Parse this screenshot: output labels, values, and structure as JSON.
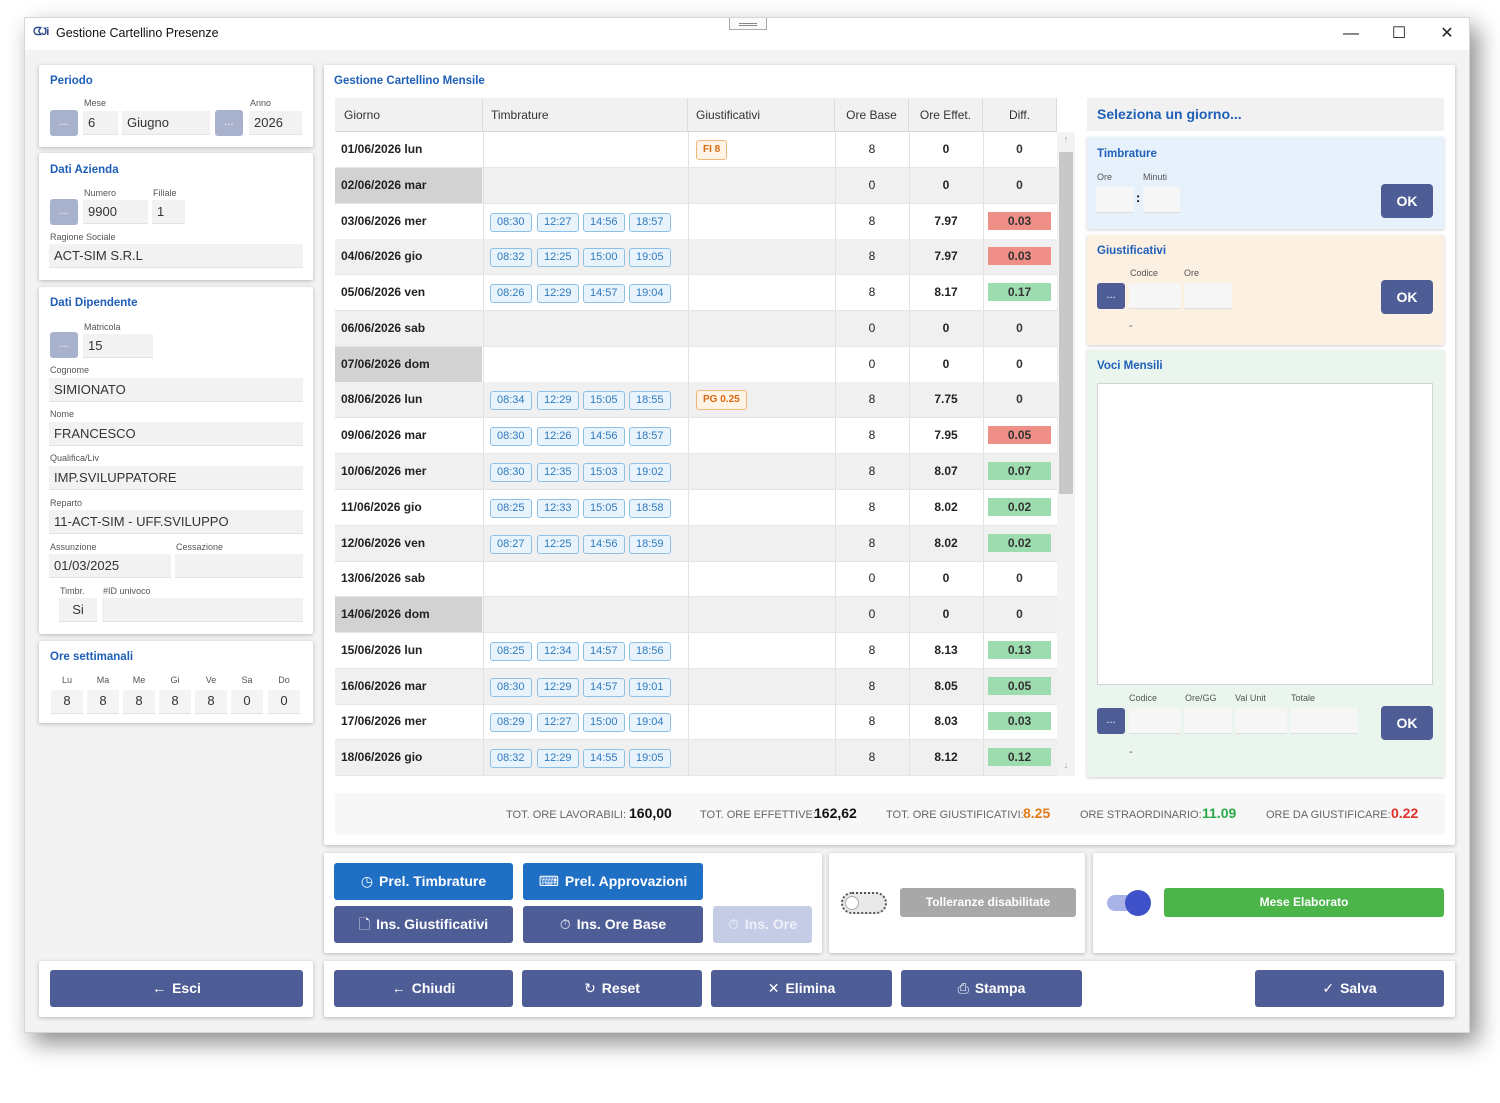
{
  "window": {
    "title": "Gestione Cartellino Presenze",
    "minimize": "—",
    "maximize": "☐",
    "close": "✕"
  },
  "periodo": {
    "title": "Periodo",
    "mese_label": "Mese",
    "mese_num": "6",
    "mese_nome": "Giugno",
    "anno_label": "Anno",
    "anno": "2026",
    "dots": "..."
  },
  "azienda": {
    "title": "Dati Azienda",
    "numero_label": "Numero",
    "numero": "9900",
    "filiale_label": "Filiale",
    "filiale": "1",
    "ragione_label": "Ragione Sociale",
    "ragione": "ACT-SIM S.R.L"
  },
  "dipendente": {
    "title": "Dati Dipendente",
    "matricola_label": "Matricola",
    "matricola": "15",
    "cognome_label": "Cognome",
    "cognome": "SIMIONATO",
    "nome_label": "Nome",
    "nome": "FRANCESCO",
    "qualifica_label": "Qualifica/Liv",
    "qualifica": "IMP.SVILUPPATORE",
    "reparto_label": "Reparto",
    "reparto": "11-ACT-SIM - UFF.SVILUPPO",
    "assunzione_label": "Assunzione",
    "assunzione": "01/03/2025",
    "cessazione_label": "Cessazione",
    "cessazione": "",
    "timbr_label": "Timbr.",
    "timbr": "Si",
    "id_label": "#ID univoco",
    "id": ""
  },
  "ore_settimanali": {
    "title": "Ore settimanali",
    "days": [
      {
        "label": "Lu",
        "value": "8"
      },
      {
        "label": "Ma",
        "value": "8"
      },
      {
        "label": "Me",
        "value": "8"
      },
      {
        "label": "Gi",
        "value": "8"
      },
      {
        "label": "Ve",
        "value": "8"
      },
      {
        "label": "Sa",
        "value": "0"
      },
      {
        "label": "Do",
        "value": "0"
      }
    ]
  },
  "grid": {
    "title": "Gestione Cartellino Mensile",
    "columns": [
      "Giorno",
      "Timbrature",
      "Giustificativi",
      "Ore Base",
      "Ore Effet.",
      "Diff."
    ],
    "rows": [
      {
        "day": "01/06/2026 lun",
        "punches": [],
        "just": "FI 8",
        "base": "8",
        "eff": "0",
        "diff": "0",
        "diff_status": "none",
        "weekend": false
      },
      {
        "day": "02/06/2026 mar",
        "punches": [],
        "just": "",
        "base": "0",
        "eff": "0",
        "diff": "0",
        "diff_status": "none",
        "weekend": true
      },
      {
        "day": "03/06/2026 mer",
        "punches": [
          "08:30",
          "12:27",
          "14:56",
          "18:57"
        ],
        "just": "",
        "base": "8",
        "eff": "7.97",
        "diff": "0.03",
        "diff_status": "red",
        "weekend": false
      },
      {
        "day": "04/06/2026 gio",
        "punches": [
          "08:32",
          "12:25",
          "15:00",
          "19:05"
        ],
        "just": "",
        "base": "8",
        "eff": "7.97",
        "diff": "0.03",
        "diff_status": "red",
        "weekend": false
      },
      {
        "day": "05/06/2026 ven",
        "punches": [
          "08:26",
          "12:29",
          "14:57",
          "19:04"
        ],
        "just": "",
        "base": "8",
        "eff": "8.17",
        "diff": "0.17",
        "diff_status": "green",
        "weekend": false
      },
      {
        "day": "06/06/2026 sab",
        "punches": [],
        "just": "",
        "base": "0",
        "eff": "0",
        "diff": "0",
        "diff_status": "none",
        "weekend": false
      },
      {
        "day": "07/06/2026 dom",
        "punches": [],
        "just": "",
        "base": "0",
        "eff": "0",
        "diff": "0",
        "diff_status": "none",
        "weekend": true
      },
      {
        "day": "08/06/2026 lun",
        "punches": [
          "08:34",
          "12:29",
          "15:05",
          "18:55"
        ],
        "just": "PG 0.25",
        "base": "8",
        "eff": "7.75",
        "diff": "0",
        "diff_status": "none",
        "weekend": false
      },
      {
        "day": "09/06/2026 mar",
        "punches": [
          "08:30",
          "12:26",
          "14:56",
          "18:57"
        ],
        "just": "",
        "base": "8",
        "eff": "7.95",
        "diff": "0.05",
        "diff_status": "red",
        "weekend": false
      },
      {
        "day": "10/06/2026 mer",
        "punches": [
          "08:30",
          "12:35",
          "15:03",
          "19:02"
        ],
        "just": "",
        "base": "8",
        "eff": "8.07",
        "diff": "0.07",
        "diff_status": "green",
        "weekend": false
      },
      {
        "day": "11/06/2026 gio",
        "punches": [
          "08:25",
          "12:33",
          "15:05",
          "18:58"
        ],
        "just": "",
        "base": "8",
        "eff": "8.02",
        "diff": "0.02",
        "diff_status": "green",
        "weekend": false
      },
      {
        "day": "12/06/2026 ven",
        "punches": [
          "08:27",
          "12:25",
          "14:56",
          "18:59"
        ],
        "just": "",
        "base": "8",
        "eff": "8.02",
        "diff": "0.02",
        "diff_status": "green",
        "weekend": false
      },
      {
        "day": "13/06/2026 sab",
        "punches": [],
        "just": "",
        "base": "0",
        "eff": "0",
        "diff": "0",
        "diff_status": "none",
        "weekend": false
      },
      {
        "day": "14/06/2026 dom",
        "punches": [],
        "just": "",
        "base": "0",
        "eff": "0",
        "diff": "0",
        "diff_status": "none",
        "weekend": true
      },
      {
        "day": "15/06/2026 lun",
        "punches": [
          "08:25",
          "12:34",
          "14:57",
          "18:56"
        ],
        "just": "",
        "base": "8",
        "eff": "8.13",
        "diff": "0.13",
        "diff_status": "green",
        "weekend": false
      },
      {
        "day": "16/06/2026 mar",
        "punches": [
          "08:30",
          "12:29",
          "14:57",
          "19:01"
        ],
        "just": "",
        "base": "8",
        "eff": "8.05",
        "diff": "0.05",
        "diff_status": "green",
        "weekend": false
      },
      {
        "day": "17/06/2026 mer",
        "punches": [
          "08:29",
          "12:27",
          "15:00",
          "19:04"
        ],
        "just": "",
        "base": "8",
        "eff": "8.03",
        "diff": "0.03",
        "diff_status": "green",
        "weekend": false
      },
      {
        "day": "18/06/2026 gio",
        "punches": [
          "08:32",
          "12:29",
          "14:55",
          "19:05"
        ],
        "just": "",
        "base": "8",
        "eff": "8.12",
        "diff": "0.12",
        "diff_status": "green",
        "weekend": false
      }
    ]
  },
  "totals": [
    {
      "label": "TOT. ORE LAVORABILI:",
      "value": "160,00",
      "color": "#111111"
    },
    {
      "label": "TOT. ORE EFFETTIVE:",
      "value": "162,62",
      "color": "#111111"
    },
    {
      "label": "TOT. ORE GIUSTIFICATIVI:",
      "value": "8.25",
      "color": "#e07b1a"
    },
    {
      "label": "ORE STRAORDINARIO:",
      "value": "11.09",
      "color": "#2aa84a"
    },
    {
      "label": "ORE DA GIUSTIFICARE:",
      "value": "0.22",
      "color": "#e0302a"
    }
  ],
  "side": {
    "header": "Seleziona un giorno...",
    "timbrature": {
      "title": "Timbrature",
      "ore_label": "Ore",
      "minuti_label": "Minuti",
      "sep": ":",
      "ok": "OK"
    },
    "giustificativi": {
      "title": "Giustificativi",
      "codice_label": "Codice",
      "ore_label": "Ore",
      "dash": "-",
      "ok": "OK",
      "dots": "..."
    },
    "voci": {
      "title": "Voci Mensili",
      "codice_label": "Codice",
      "oregg_label": "Ore/GG",
      "valunit_label": "Val Unit",
      "totale_label": "Totale",
      "dash": "-",
      "ok": "OK",
      "dots": "..."
    }
  },
  "actions": {
    "prel_timbrature": "Prel. Timbrature",
    "prel_approvazioni": "Prel. Approvazioni",
    "ins_giustificativi": "Ins. Giustificativi",
    "ins_ore_base": "Ins. Ore Base",
    "ins_ore": "Ins. Ore",
    "tolleranze": "Tolleranze disabilitate",
    "mese_elaborato": "Mese Elaborato"
  },
  "footer": {
    "esci": "Esci",
    "chiudi": "Chiudi",
    "reset": "Reset",
    "elimina": "Elimina",
    "stampa": "Stampa",
    "salva": "Salva"
  },
  "colors": {
    "accent": "#1f5fb8",
    "button_navy": "#4e5d96",
    "button_blue": "#1f6fc5",
    "diff_red": "#ef8f87",
    "diff_green": "#9ddcae",
    "mese_green": "#4cb54a",
    "toggle_blue": "#3f51c8"
  }
}
